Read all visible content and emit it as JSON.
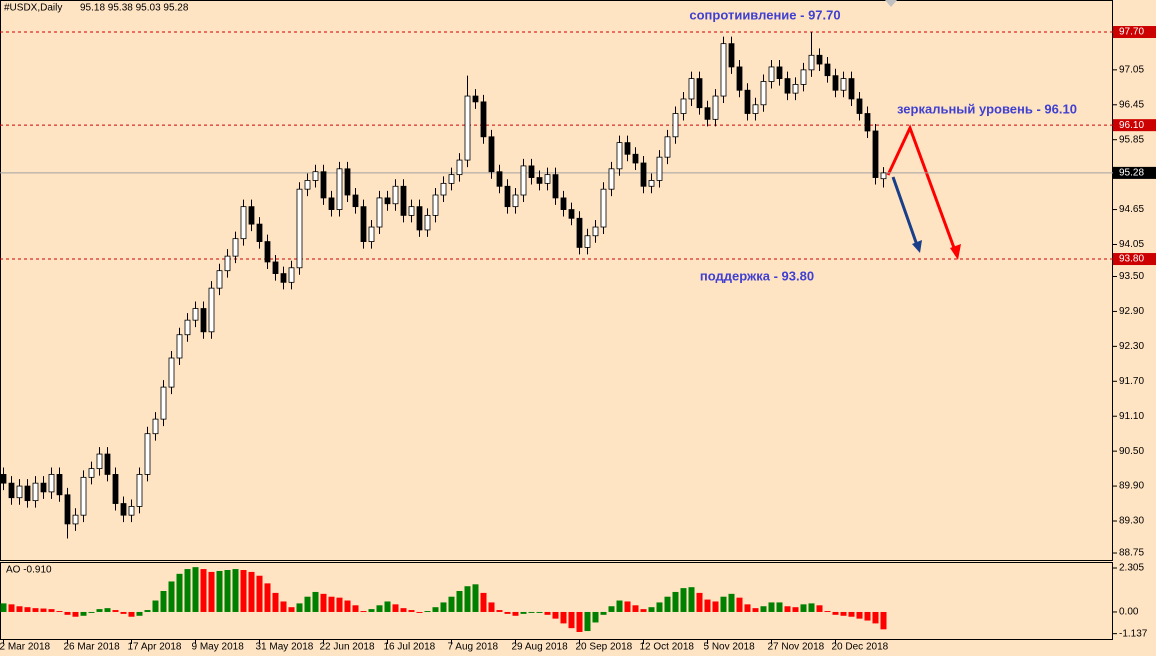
{
  "chart_data": [
    {
      "type": "candlestick",
      "title": "#USDX,Daily",
      "ohlc_text": "95.18 95.38 95.03 95.28",
      "categories": [
        "2 Mar 2018",
        null,
        null,
        null,
        null,
        null,
        null,
        null,
        "26 Mar 2018",
        null,
        null,
        null,
        null,
        null,
        null,
        null,
        "17 Apr 2018",
        null,
        null,
        null,
        null,
        null,
        null,
        null,
        "9 May 2018",
        null,
        null,
        null,
        null,
        null,
        null,
        null,
        "31 May 2018",
        null,
        null,
        null,
        null,
        null,
        null,
        null,
        "22 Jun 2018",
        null,
        null,
        null,
        null,
        null,
        null,
        null,
        "16 Jul 2018",
        null,
        null,
        null,
        null,
        null,
        null,
        null,
        "7 Aug 2018",
        null,
        null,
        null,
        null,
        null,
        null,
        null,
        "29 Aug 2018",
        null,
        null,
        null,
        null,
        null,
        null,
        null,
        "20 Sep 2018",
        null,
        null,
        null,
        null,
        null,
        null,
        null,
        "12 Oct 2018",
        null,
        null,
        null,
        null,
        null,
        null,
        null,
        "5 Nov 2018",
        null,
        null,
        null,
        null,
        null,
        null,
        null,
        "27 Nov 2018",
        null,
        null,
        null,
        null,
        null,
        null,
        null,
        "20 Dec 2018",
        null,
        null,
        null,
        null,
        null,
        null
      ],
      "open": [
        90.1,
        89.95,
        89.7,
        89.9,
        89.65,
        89.95,
        89.8,
        90.1,
        89.75,
        89.25,
        89.4,
        90.05,
        90.2,
        90.45,
        90.1,
        89.6,
        89.4,
        89.55,
        90.1,
        90.8,
        91.05,
        91.6,
        92.1,
        92.5,
        92.75,
        92.95,
        92.55,
        93.3,
        93.6,
        93.85,
        94.15,
        94.7,
        94.4,
        94.1,
        93.75,
        93.55,
        93.4,
        93.65,
        95.0,
        95.15,
        95.3,
        94.85,
        94.65,
        95.35,
        94.9,
        94.7,
        94.1,
        94.35,
        94.85,
        94.75,
        95.05,
        94.55,
        94.7,
        94.3,
        94.55,
        94.9,
        95.1,
        95.25,
        95.5,
        96.6,
        96.5,
        95.9,
        95.3,
        95.05,
        94.7,
        94.9,
        95.4,
        95.2,
        95.1,
        95.25,
        94.85,
        94.65,
        94.5,
        94.0,
        94.2,
        94.35,
        95.0,
        95.35,
        95.8,
        95.6,
        95.45,
        95.05,
        95.15,
        95.55,
        95.9,
        96.3,
        96.55,
        96.9,
        96.4,
        96.2,
        96.6,
        97.5,
        97.1,
        96.7,
        96.3,
        96.45,
        96.85,
        97.1,
        96.9,
        96.65,
        96.8,
        97.05,
        97.3,
        97.15,
        96.95,
        96.7,
        96.9,
        96.55,
        96.3,
        96.0,
        95.18
      ],
      "high": [
        90.22,
        90.07,
        90.02,
        90.02,
        90.07,
        90.07,
        90.22,
        90.22,
        89.87,
        89.52,
        90.17,
        90.32,
        90.57,
        90.57,
        90.22,
        89.72,
        89.67,
        90.22,
        90.92,
        91.17,
        91.72,
        92.22,
        92.62,
        92.87,
        93.07,
        93.07,
        93.42,
        93.72,
        93.97,
        94.27,
        94.82,
        94.82,
        94.52,
        94.22,
        93.87,
        93.67,
        93.77,
        95.12,
        95.27,
        95.42,
        95.42,
        94.97,
        95.47,
        95.47,
        95.02,
        94.82,
        94.47,
        94.97,
        94.97,
        95.17,
        95.17,
        94.82,
        94.82,
        94.67,
        95.02,
        95.22,
        95.37,
        95.62,
        96.95,
        96.72,
        96.62,
        96.02,
        95.42,
        95.17,
        95.02,
        95.52,
        95.52,
        95.32,
        95.37,
        95.37,
        94.97,
        94.77,
        94.62,
        94.32,
        94.47,
        95.12,
        95.47,
        95.92,
        95.92,
        95.72,
        95.57,
        95.27,
        95.67,
        96.02,
        96.42,
        96.67,
        97.02,
        97.02,
        96.52,
        96.72,
        97.62,
        97.62,
        97.22,
        96.82,
        96.57,
        96.97,
        97.22,
        97.22,
        97.02,
        96.92,
        97.17,
        97.7,
        97.42,
        97.27,
        97.07,
        97.02,
        97.02,
        96.67,
        96.42,
        96.12,
        95.38
      ],
      "low": [
        89.83,
        89.58,
        89.58,
        89.53,
        89.53,
        89.68,
        89.68,
        89.63,
        89.0,
        89.13,
        89.28,
        89.93,
        90.08,
        89.98,
        89.48,
        89.28,
        89.28,
        89.43,
        89.98,
        90.68,
        90.93,
        91.48,
        91.98,
        92.38,
        92.63,
        92.43,
        92.43,
        93.18,
        93.48,
        93.73,
        94.03,
        94.28,
        93.98,
        93.63,
        93.43,
        93.28,
        93.28,
        93.53,
        94.88,
        95.03,
        94.73,
        94.53,
        94.53,
        94.78,
        94.58,
        93.98,
        93.98,
        94.23,
        94.63,
        94.63,
        94.43,
        94.43,
        94.18,
        94.18,
        94.43,
        94.78,
        94.98,
        95.13,
        95.38,
        96.38,
        95.78,
        95.18,
        94.93,
        94.58,
        94.58,
        94.78,
        95.08,
        94.98,
        94.98,
        94.73,
        94.53,
        94.38,
        93.88,
        93.88,
        94.08,
        94.23,
        94.88,
        95.23,
        95.48,
        95.33,
        94.93,
        94.93,
        95.03,
        95.43,
        95.78,
        96.18,
        96.43,
        96.28,
        96.08,
        96.08,
        96.48,
        96.98,
        96.58,
        96.18,
        96.18,
        96.33,
        96.73,
        96.78,
        96.53,
        96.53,
        96.68,
        96.93,
        97.03,
        96.83,
        96.58,
        96.58,
        96.43,
        96.18,
        95.88,
        95.08,
        95.03
      ],
      "close": [
        89.95,
        89.7,
        89.9,
        89.65,
        89.95,
        89.8,
        90.1,
        89.75,
        89.25,
        89.4,
        90.05,
        90.2,
        90.45,
        90.1,
        89.6,
        89.4,
        89.55,
        90.1,
        90.8,
        91.05,
        91.6,
        92.1,
        92.5,
        92.75,
        92.95,
        92.55,
        93.3,
        93.6,
        93.85,
        94.15,
        94.7,
        94.4,
        94.1,
        93.75,
        93.55,
        93.4,
        93.65,
        95.0,
        95.15,
        95.3,
        94.85,
        94.65,
        95.35,
        94.9,
        94.7,
        94.1,
        94.35,
        94.85,
        94.75,
        95.05,
        94.55,
        94.7,
        94.3,
        94.55,
        94.9,
        95.1,
        95.25,
        95.5,
        96.6,
        96.5,
        95.9,
        95.3,
        95.05,
        94.7,
        94.9,
        95.4,
        95.2,
        95.1,
        95.25,
        94.85,
        94.65,
        94.5,
        94.0,
        94.2,
        94.35,
        95.0,
        95.35,
        95.8,
        95.6,
        95.45,
        95.05,
        95.15,
        95.55,
        95.9,
        96.3,
        96.55,
        96.9,
        96.4,
        96.2,
        96.6,
        97.5,
        97.1,
        96.7,
        96.3,
        96.45,
        96.85,
        97.1,
        96.9,
        96.65,
        96.8,
        97.05,
        97.3,
        97.15,
        96.95,
        96.7,
        96.9,
        96.55,
        96.3,
        96.0,
        95.2,
        95.28
      ],
      "bull_color": "#ffffff",
      "bear_color": "#000000",
      "ylim": [
        88.63,
        98.25
      ],
      "yticks": [
        {
          "value": 97.05,
          "label": "97.05"
        },
        {
          "value": 96.45,
          "label": "96.45"
        },
        {
          "value": 95.85,
          "label": "95.85"
        },
        {
          "value": 94.65,
          "label": "94.65"
        },
        {
          "value": 94.05,
          "label": "94.05"
        },
        {
          "value": 93.5,
          "label": "93.50"
        },
        {
          "value": 92.9,
          "label": "92.90"
        },
        {
          "value": 92.3,
          "label": "92.30"
        },
        {
          "value": 91.7,
          "label": "91.70"
        },
        {
          "value": 91.1,
          "label": "91.10"
        },
        {
          "value": 90.5,
          "label": "90.50"
        },
        {
          "value": 89.9,
          "label": "89.90"
        },
        {
          "value": 89.3,
          "label": "89.30"
        },
        {
          "value": 88.75,
          "label": "88.75"
        }
      ],
      "levels": [
        {
          "value": 97.7,
          "label": "97.70"
        },
        {
          "value": 96.1,
          "label": "96.10"
        },
        {
          "value": 93.8,
          "label": "93.80"
        }
      ],
      "level_color": "#cc0000",
      "annotations": [
        "сопротиивление - 97.70",
        "зеркальный уровень - 96.10",
        "поддержка - 93.80"
      ]
    },
    {
      "type": "bar",
      "title": "AO -0.910",
      "values": [
        0.45,
        0.4,
        0.3,
        0.25,
        0.2,
        0.18,
        0.15,
        0.05,
        -0.15,
        -0.25,
        -0.2,
        -0.05,
        0.15,
        0.2,
        0.1,
        -0.1,
        -0.25,
        -0.2,
        0.1,
        0.6,
        1.1,
        1.6,
        2.0,
        2.25,
        2.35,
        2.25,
        2.1,
        2.15,
        2.2,
        2.25,
        2.2,
        2.1,
        1.9,
        1.5,
        1.0,
        0.55,
        0.25,
        0.45,
        0.8,
        1.05,
        0.95,
        0.8,
        0.75,
        0.6,
        0.35,
        0.05,
        0.15,
        0.35,
        0.55,
        0.4,
        0.2,
        0.1,
        -0.05,
        0.05,
        0.25,
        0.5,
        0.8,
        1.1,
        1.35,
        1.45,
        1.0,
        0.5,
        0.1,
        -0.1,
        -0.2,
        -0.1,
        -0.05,
        -0.05,
        -0.15,
        -0.35,
        -0.6,
        -0.85,
        -1.05,
        -1.0,
        -0.55,
        -0.15,
        0.3,
        0.6,
        0.55,
        0.35,
        0.15,
        0.25,
        0.5,
        0.8,
        1.05,
        1.25,
        1.3,
        1.0,
        0.65,
        0.55,
        0.8,
        0.95,
        0.75,
        0.4,
        0.2,
        0.3,
        0.5,
        0.5,
        0.3,
        0.25,
        0.4,
        0.45,
        0.35,
        0.05,
        -0.15,
        -0.2,
        -0.25,
        -0.35,
        -0.45,
        -0.6,
        -0.91
      ],
      "up_color": "#008000",
      "down_color": "#ff0000",
      "ylim": [
        -1.47,
        2.62
      ],
      "yticks": [
        2.305,
        {
          "value": 0,
          "label": "0.00"
        },
        -1.137
      ]
    }
  ]
}
